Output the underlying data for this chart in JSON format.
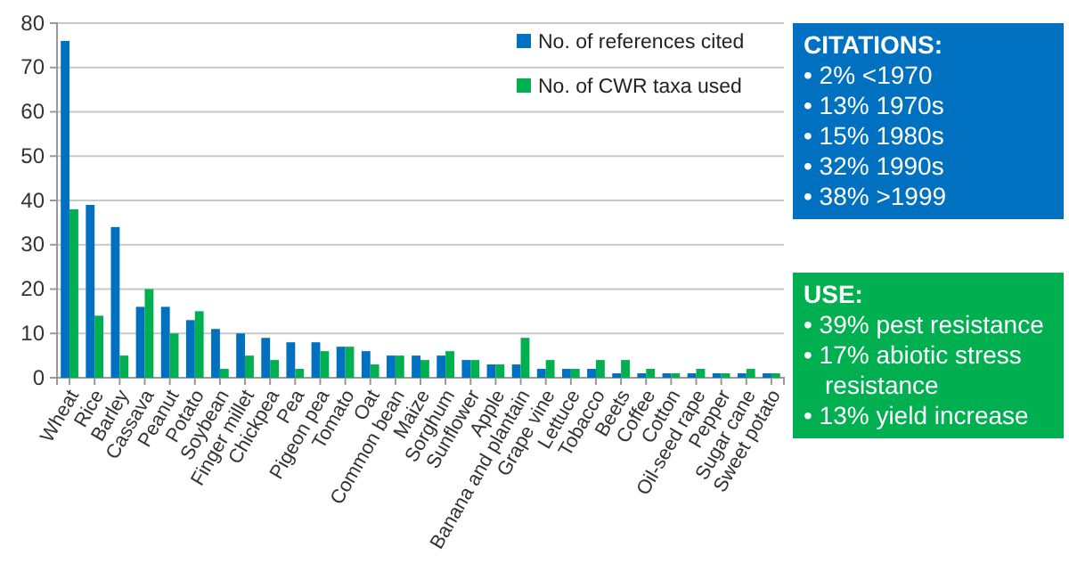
{
  "chart_data": {
    "type": "bar",
    "categories": [
      "Wheat",
      "Rice",
      "Barley",
      "Cassava",
      "Peanut",
      "Potato",
      "Soybean",
      "Finger millet",
      "Chickpea",
      "Pea",
      "Pigeon pea",
      "Tomato",
      "Oat",
      "Common bean",
      "Maize",
      "Sorghum",
      "Sunflower",
      "Apple",
      "Banana and plantain",
      "Grape vine",
      "Lettuce",
      "Tobacco",
      "Beets",
      "Coffee",
      "Cotton",
      "Oil-seed rape",
      "Pepper",
      "Sugar cane",
      "Sweet potato"
    ],
    "series": [
      {
        "name": "No. of references cited",
        "color": "#0070c0",
        "values": [
          76,
          39,
          34,
          16,
          16,
          13,
          11,
          10,
          9,
          8,
          8,
          7,
          6,
          5,
          5,
          5,
          4,
          3,
          3,
          2,
          2,
          2,
          1,
          1,
          1,
          1,
          1,
          1,
          1
        ]
      },
      {
        "name": "No. of CWR taxa used",
        "color": "#00b050",
        "values": [
          38,
          14,
          5,
          20,
          10,
          15,
          2,
          5,
          4,
          2,
          6,
          7,
          3,
          5,
          4,
          6,
          4,
          3,
          9,
          4,
          2,
          4,
          4,
          2,
          1,
          2,
          1,
          2,
          1
        ]
      }
    ],
    "ylim": [
      0,
      80
    ],
    "yticks": [
      0,
      10,
      20,
      30,
      40,
      50,
      60,
      70,
      80
    ],
    "grid": "y",
    "legend": "top right",
    "annotations": [
      "CITATIONS:\n• 2% <1970\n• 13% 1970s\n• 15% 1980s\n• 32% 1990s\n• 38% >1999",
      "USE:\n• 39% pest resistance\n• 17% abiotic stress resistance\n• 13% yield increase"
    ]
  }
}
